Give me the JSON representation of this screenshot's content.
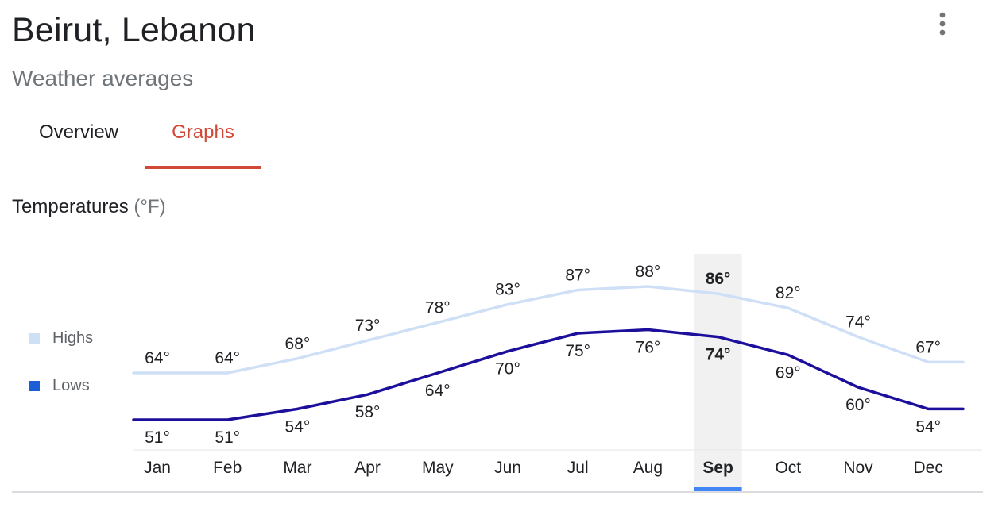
{
  "header": {
    "title": "Beirut, Lebanon",
    "subtitle": "Weather averages"
  },
  "menu": {
    "icon": "more-vert-icon"
  },
  "tabs": [
    {
      "label": "Overview",
      "active": false
    },
    {
      "label": "Graphs",
      "active": true
    }
  ],
  "section": {
    "title": "Temperatures",
    "unit": "(°F)"
  },
  "colors": {
    "accent_tab": "#d14836",
    "highs": "#cfe0f6",
    "lows": "#1c0f9c",
    "legend_lows": "#1a5fd6",
    "selected_column": "#f1f1f1",
    "selected_bar": "#4285f4"
  },
  "legend": [
    {
      "label": "Highs",
      "color": "#cfe0f6"
    },
    {
      "label": "Lows",
      "color": "#1a5fd6"
    }
  ],
  "chart_data": {
    "type": "line",
    "title": "Temperatures (°F)",
    "categories": [
      "Jan",
      "Feb",
      "Mar",
      "Apr",
      "May",
      "Jun",
      "Jul",
      "Aug",
      "Sep",
      "Oct",
      "Nov",
      "Dec"
    ],
    "selected": "Sep",
    "series": [
      {
        "name": "Highs",
        "values": [
          64,
          64,
          68,
          73,
          78,
          83,
          87,
          88,
          86,
          82,
          74,
          67
        ],
        "labels": [
          "64°",
          "64°",
          "68°",
          "73°",
          "78°",
          "83°",
          "87°",
          "88°",
          "86°",
          "82°",
          "74°",
          "67°"
        ]
      },
      {
        "name": "Lows",
        "values": [
          51,
          51,
          54,
          58,
          64,
          70,
          75,
          76,
          74,
          69,
          60,
          54
        ],
        "labels": [
          "51°",
          "51°",
          "54°",
          "58°",
          "64°",
          "70°",
          "75°",
          "76°",
          "74°",
          "69°",
          "60°",
          "54°"
        ]
      }
    ],
    "grid": false,
    "legend_position": "left"
  }
}
